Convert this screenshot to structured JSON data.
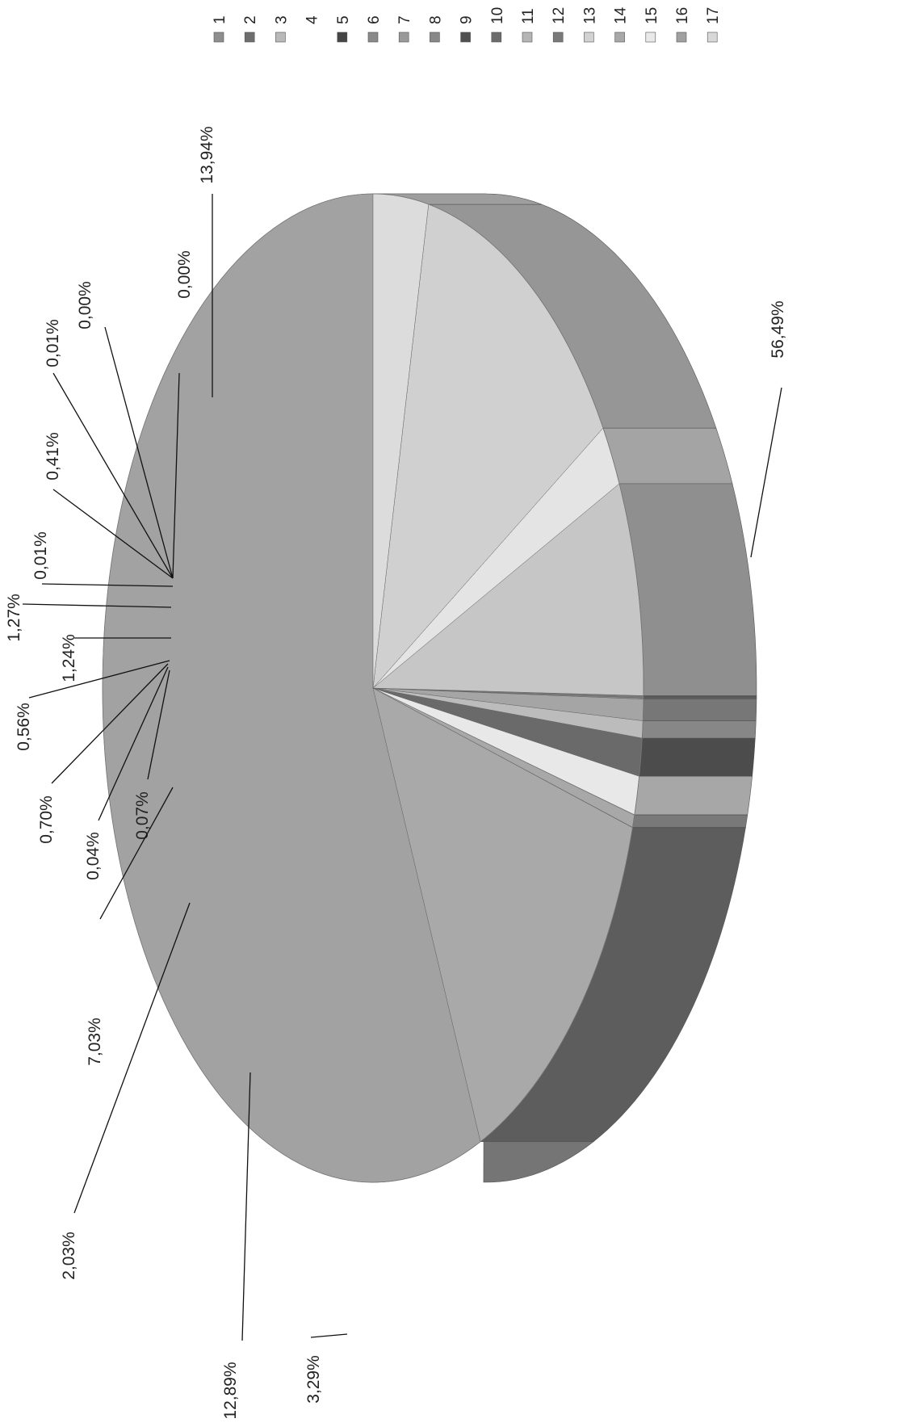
{
  "chart_data": {
    "type": "pie",
    "style": "3d, rotated 90 degrees counter-clockwise, grayscale",
    "categories": [
      "1",
      "2",
      "3",
      "4",
      "5",
      "6",
      "7",
      "8",
      "9",
      "10",
      "11",
      "12",
      "13",
      "14",
      "15",
      "16",
      "17"
    ],
    "values": [
      56.49,
      13.94,
      0.0,
      0.0,
      0.01,
      0.41,
      0.01,
      1.27,
      1.24,
      0.56,
      0.7,
      0.04,
      0.07,
      7.03,
      2.03,
      12.89,
      3.29
    ],
    "data_labels": [
      "56,49%",
      "13,94%",
      "0,00%",
      "0,00%",
      "0,01%",
      "0,41%",
      "0,01%",
      "1,27%",
      "1,24%",
      "0,56%",
      "0,70%",
      "0,04%",
      "0,07%",
      "7,03%",
      "2,03%",
      "12,89%",
      "3,29%"
    ],
    "legend": {
      "placement": "top (rotated, right side of page)",
      "entries": [
        "1",
        "2",
        "3",
        "4",
        "5",
        "6",
        "7",
        "8",
        "9",
        "10",
        "11",
        "12",
        "13",
        "14",
        "15",
        "16",
        "17"
      ]
    },
    "colors": [
      "#a2a2a2",
      "#a9a9a9",
      "#8c8c8c",
      "#cfcfcf",
      "#5e5e5e",
      "#a8a8a8",
      "#bdbdbd",
      "#e8e8e8",
      "#6a6a6a",
      "#bcbcbc",
      "#a5a5a5",
      "#8f8f8f",
      "#7a7a7a",
      "#c6c6c6",
      "#e4e4e4",
      "#d0d0d0",
      "#dcdcdc"
    ],
    "legend_swatch_colors": [
      "#8e8e8e",
      "#6e6e6e",
      "#b9b9b9",
      "#ffffff",
      "#454545",
      "#8a8a8a",
      "#9a9a9a",
      "#888888",
      "#505050",
      "#6c6c6c",
      "#b5b5b5",
      "#7a7a7a",
      "#d2d2d2",
      "#a8a8a8",
      "#e9e9e9",
      "#a0a0a0",
      "#d8d8d8"
    ]
  }
}
